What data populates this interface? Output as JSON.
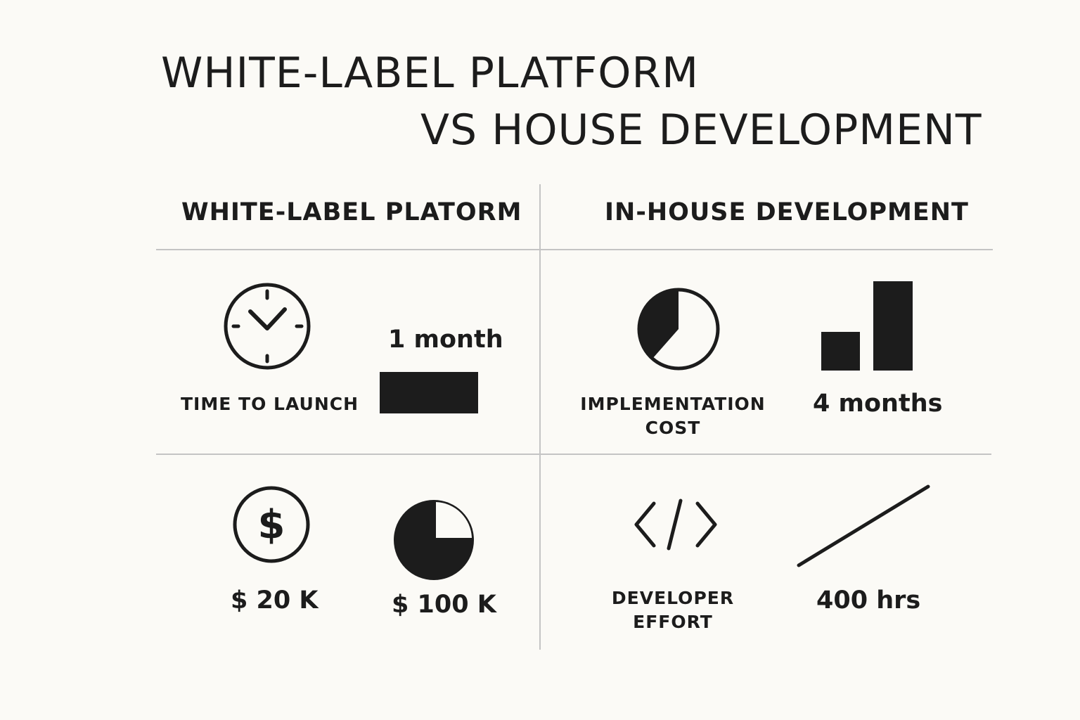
{
  "title": {
    "line1": "WHITE-LABEL PLATFORM",
    "line2": "VS  HOUSE DEVELOPMENT"
  },
  "columns": {
    "left_header": "WHITE-LABEL PLATORM",
    "right_header": "IN-HOUSE DEVELOPMENT"
  },
  "rows": {
    "time": {
      "icon": "clock-icon",
      "label": "TIME TO LAUNCH",
      "value": "1 month"
    },
    "cost": {
      "icon": "pie-chart-icon",
      "label_line1": "IMPLEMENTATION",
      "label_line2": "COST",
      "value": "4 months"
    },
    "money": {
      "icon": "dollar-icon",
      "value_left": "$ 20 K",
      "value_right": "$ 100 K"
    },
    "effort": {
      "icon": "code-icon",
      "label_line1": "DEVELOPER",
      "label_line2": "EFFORT",
      "value": "400 hrs"
    }
  },
  "colors": {
    "ink": "#1c1c1c",
    "divider": "#c4c4c4",
    "background": "#fbfaf6"
  }
}
